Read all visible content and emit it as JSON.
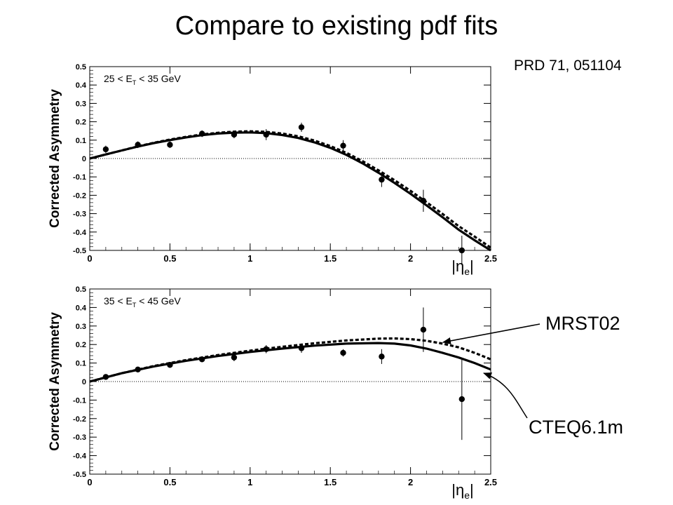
{
  "slide": {
    "title": "Compare to existing pdf fits",
    "reference": "PRD 71, 051104",
    "callouts": {
      "mrst": "MRST02",
      "cteq": "CTEQ6.1m"
    }
  },
  "chart_data": [
    {
      "type": "scatter",
      "panel_label": "25 < E_T < 35 GeV",
      "ylabel": "Corrected Asymmetry",
      "xlabel": "|η_e|",
      "xlim": [
        0,
        2.5
      ],
      "ylim": [
        -0.5,
        0.5
      ],
      "x_ticks": [
        "0",
        "0.5",
        "1",
        "1.5",
        "2",
        "2.5"
      ],
      "y_ticks": [
        "-0.5",
        "-0.4",
        "-0.3",
        "-0.2",
        "-0.1",
        "0",
        "0.1",
        "0.2",
        "0.3",
        "0.4",
        "0.5"
      ],
      "zero_line": true,
      "points": [
        {
          "x": 0.1,
          "y": 0.05,
          "err": 0.02
        },
        {
          "x": 0.3,
          "y": 0.075,
          "err": 0.018
        },
        {
          "x": 0.5,
          "y": 0.075,
          "err": 0.018
        },
        {
          "x": 0.7,
          "y": 0.135,
          "err": 0.018
        },
        {
          "x": 0.9,
          "y": 0.13,
          "err": 0.02
        },
        {
          "x": 1.1,
          "y": 0.13,
          "err": 0.03
        },
        {
          "x": 1.32,
          "y": 0.17,
          "err": 0.025
        },
        {
          "x": 1.58,
          "y": 0.07,
          "err": 0.03
        },
        {
          "x": 1.82,
          "y": -0.115,
          "err": 0.04
        },
        {
          "x": 2.08,
          "y": -0.23,
          "err": 0.06
        },
        {
          "x": 2.32,
          "y": -0.5,
          "err": 0.08
        }
      ],
      "series": [
        {
          "name": "CTEQ6.1m",
          "style": "solid",
          "x": [
            0,
            0.1,
            0.2,
            0.3,
            0.4,
            0.5,
            0.6,
            0.7,
            0.8,
            0.9,
            1.0,
            1.1,
            1.2,
            1.3,
            1.4,
            1.5,
            1.6,
            1.7,
            1.8,
            1.9,
            2.0,
            2.1,
            2.2,
            2.3,
            2.4,
            2.5
          ],
          "y": [
            0,
            0.022,
            0.044,
            0.065,
            0.084,
            0.1,
            0.115,
            0.127,
            0.136,
            0.141,
            0.142,
            0.138,
            0.128,
            0.112,
            0.088,
            0.058,
            0.02,
            -0.026,
            -0.077,
            -0.133,
            -0.192,
            -0.255,
            -0.32,
            -0.387,
            -0.445,
            -0.5
          ]
        },
        {
          "name": "MRST02",
          "style": "dashed",
          "x": [
            0,
            0.1,
            0.2,
            0.3,
            0.4,
            0.5,
            0.6,
            0.7,
            0.8,
            0.9,
            1.0,
            1.1,
            1.2,
            1.3,
            1.4,
            1.5,
            1.6,
            1.7,
            1.8,
            1.9,
            2.0,
            2.1,
            2.2,
            2.3,
            2.4,
            2.5
          ],
          "y": [
            0,
            0.022,
            0.044,
            0.066,
            0.086,
            0.103,
            0.118,
            0.131,
            0.14,
            0.146,
            0.148,
            0.145,
            0.136,
            0.121,
            0.098,
            0.068,
            0.031,
            -0.014,
            -0.064,
            -0.118,
            -0.176,
            -0.238,
            -0.302,
            -0.368,
            -0.425,
            -0.485
          ]
        }
      ]
    },
    {
      "type": "scatter",
      "panel_label": "35 < E_T < 45 GeV",
      "ylabel": "Corrected Asymmetry",
      "xlabel": "|η_e|",
      "xlim": [
        0,
        2.5
      ],
      "ylim": [
        -0.5,
        0.5
      ],
      "x_ticks": [
        "0",
        "0.5",
        "1",
        "1.5",
        "2",
        "2.5"
      ],
      "y_ticks": [
        "-0.5",
        "-0.4",
        "-0.3",
        "-0.2",
        "-0.1",
        "0",
        "0.1",
        "0.2",
        "0.3",
        "0.4",
        "0.5"
      ],
      "zero_line": true,
      "points": [
        {
          "x": 0.1,
          "y": 0.025,
          "err": 0.015
        },
        {
          "x": 0.3,
          "y": 0.065,
          "err": 0.012
        },
        {
          "x": 0.5,
          "y": 0.09,
          "err": 0.015
        },
        {
          "x": 0.7,
          "y": 0.12,
          "err": 0.015
        },
        {
          "x": 0.9,
          "y": 0.13,
          "err": 0.02
        },
        {
          "x": 1.1,
          "y": 0.175,
          "err": 0.022
        },
        {
          "x": 1.32,
          "y": 0.18,
          "err": 0.025
        },
        {
          "x": 1.58,
          "y": 0.155,
          "err": 0.02
        },
        {
          "x": 1.82,
          "y": 0.135,
          "err": 0.04
        },
        {
          "x": 2.08,
          "y": 0.28,
          "err": 0.12
        },
        {
          "x": 2.32,
          "y": -0.095,
          "err": 0.22
        }
      ],
      "series": [
        {
          "name": "CTEQ6.1m",
          "style": "solid",
          "x": [
            0,
            0.2,
            0.4,
            0.6,
            0.8,
            1.0,
            1.2,
            1.4,
            1.6,
            1.8,
            1.9,
            2.0,
            2.1,
            2.2,
            2.3,
            2.4,
            2.5
          ],
          "y": [
            0,
            0.045,
            0.082,
            0.112,
            0.138,
            0.16,
            0.178,
            0.194,
            0.205,
            0.208,
            0.205,
            0.195,
            0.178,
            0.155,
            0.13,
            0.1,
            0.065
          ]
        },
        {
          "name": "MRST02",
          "style": "dashed",
          "x": [
            0,
            0.2,
            0.4,
            0.6,
            0.8,
            1.0,
            1.2,
            1.4,
            1.6,
            1.8,
            1.9,
            2.0,
            2.1,
            2.2,
            2.3,
            2.4,
            2.5
          ],
          "y": [
            0,
            0.045,
            0.084,
            0.116,
            0.143,
            0.167,
            0.188,
            0.207,
            0.222,
            0.232,
            0.233,
            0.229,
            0.22,
            0.205,
            0.185,
            0.155,
            0.12
          ]
        }
      ]
    }
  ]
}
